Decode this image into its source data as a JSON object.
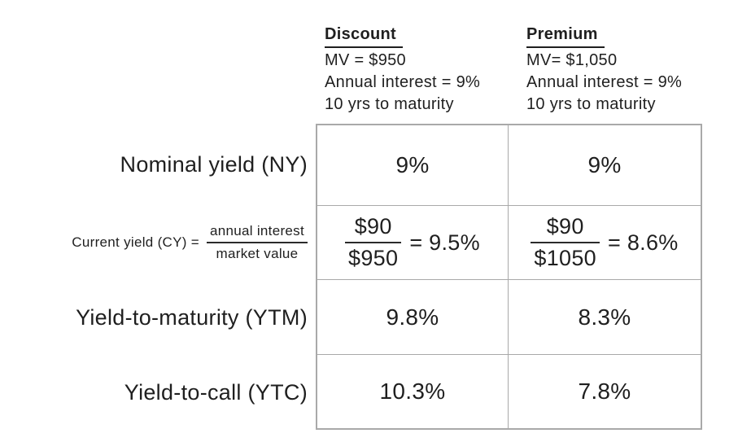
{
  "colors": {
    "text": "#1f1f1f",
    "table-border": "#a9a9a9",
    "frac-bar": "#2b2b2b",
    "background": "#ffffff"
  },
  "column_headers": [
    {
      "title": "Discount",
      "market_value": "MV = $950",
      "annual_interest": "Annual interest = 9%",
      "maturity": "10 yrs to maturity"
    },
    {
      "title": "Premium",
      "market_value": "MV= $1,050",
      "annual_interest": "Annual interest = 9%",
      "maturity": "10 yrs to maturity"
    }
  ],
  "row_labels": {
    "nominal_yield": "Nominal yield (NY)",
    "current_yield_prefix": "Current yield (CY) =",
    "current_yield_fraction": {
      "numerator": "annual interest",
      "denominator": "market value"
    },
    "yield_to_maturity": "Yield-to-maturity (YTM)",
    "yield_to_call": "Yield-to-call (YTC)"
  },
  "cells": {
    "nominal": {
      "discount": "9%",
      "premium": "9%"
    },
    "current": {
      "discount": {
        "numerator": "$90",
        "denominator": "$950",
        "result": "= 9.5%"
      },
      "premium": {
        "numerator": "$90",
        "denominator": "$1050",
        "result": "= 8.6%"
      }
    },
    "ytm": {
      "discount": "9.8%",
      "premium": "8.3%"
    },
    "ytc": {
      "discount": "10.3%",
      "premium": "7.8%"
    }
  }
}
